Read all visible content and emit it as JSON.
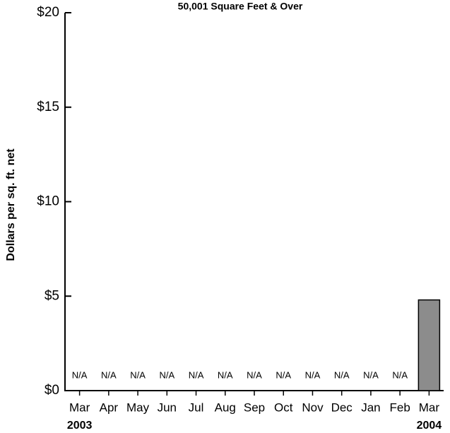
{
  "chart_data": {
    "type": "bar",
    "title": "50,001  Square Feet & Over",
    "y_label": "Dollars per sq. ft. net",
    "categories": [
      "Mar",
      "Apr",
      "May",
      "Jun",
      "Jul",
      "Aug",
      "Sep",
      "Oct",
      "Nov",
      "Dec",
      "Jan",
      "Feb",
      "Mar"
    ],
    "category_years": [
      "2003",
      null,
      null,
      null,
      null,
      null,
      null,
      null,
      null,
      null,
      null,
      null,
      "2004"
    ],
    "values": [
      null,
      null,
      null,
      null,
      null,
      null,
      null,
      null,
      null,
      null,
      null,
      null,
      4.8
    ],
    "value_labels": [
      "N/A",
      "N/A",
      "N/A",
      "N/A",
      "N/A",
      "N/A",
      "N/A",
      "N/A",
      "N/A",
      "N/A",
      "N/A",
      "N/A",
      null
    ],
    "color": "#8c8c8c",
    "ylim": [
      0,
      20
    ],
    "yticks": [
      {
        "value": 0,
        "label": "$0"
      },
      {
        "value": 5,
        "label": "$5"
      },
      {
        "value": 10,
        "label": "$10"
      },
      {
        "value": 15,
        "label": "$15"
      },
      {
        "value": 20,
        "label": "$20"
      }
    ]
  }
}
